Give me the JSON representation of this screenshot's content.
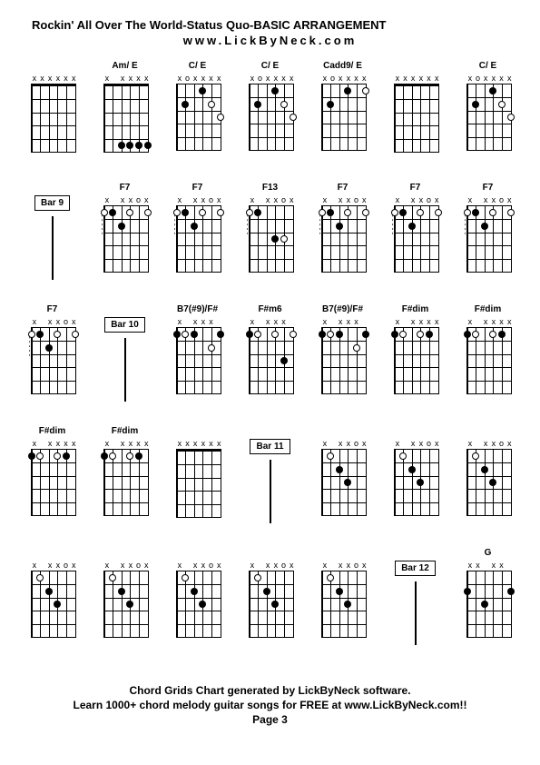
{
  "title": "Rockin' All Over The World-Status Quo-BASIC ARRANGEMENT",
  "subtitle": "www.LickByNeck.com",
  "footer": {
    "line1": "Chord Grids Chart generated by LickByNeck software.",
    "line2": "Learn 1000+ chord melody guitar songs for FREE at www.LickByNeck.com!!",
    "line3": "Page 3"
  },
  "cells": [
    {
      "type": "chord",
      "name": "",
      "markers": [
        "x",
        "x",
        "x",
        "x",
        "x",
        "x"
      ],
      "nut": true,
      "dots": []
    },
    {
      "type": "chord",
      "name": "Am/ E",
      "markers": [
        "x",
        "",
        "x",
        "x",
        "x",
        "x"
      ],
      "nut": true,
      "dots": [
        {
          "s": 2,
          "f": 5,
          "open": false
        },
        {
          "s": 3,
          "f": 5,
          "open": false
        },
        {
          "s": 4,
          "f": 5,
          "open": false
        },
        {
          "s": 5,
          "f": 5,
          "open": false
        }
      ]
    },
    {
      "type": "chord",
      "name": "C/ E",
      "markers": [
        "x",
        "o",
        "x",
        "x",
        "x",
        "x"
      ],
      "nut": false,
      "dots": [
        {
          "s": 1,
          "f": 2,
          "open": false
        },
        {
          "s": 3,
          "f": 1,
          "open": false
        },
        {
          "s": 4,
          "f": 2,
          "open": true
        },
        {
          "s": 5,
          "f": 3,
          "open": true
        }
      ]
    },
    {
      "type": "chord",
      "name": "C/ E",
      "markers": [
        "x",
        "o",
        "x",
        "x",
        "x",
        "x"
      ],
      "nut": false,
      "dots": [
        {
          "s": 1,
          "f": 2,
          "open": false
        },
        {
          "s": 3,
          "f": 1,
          "open": false
        },
        {
          "s": 4,
          "f": 2,
          "open": true
        },
        {
          "s": 5,
          "f": 3,
          "open": true
        }
      ]
    },
    {
      "type": "chord",
      "name": "Cadd9/ E",
      "markers": [
        "x",
        "o",
        "x",
        "x",
        "x",
        "x"
      ],
      "nut": false,
      "dots": [
        {
          "s": 1,
          "f": 2,
          "open": false
        },
        {
          "s": 3,
          "f": 1,
          "open": false
        },
        {
          "s": 5,
          "f": 1,
          "open": true
        }
      ]
    },
    {
      "type": "chord",
      "name": "",
      "markers": [
        "x",
        "x",
        "x",
        "x",
        "x",
        "x"
      ],
      "nut": true,
      "dots": []
    },
    {
      "type": "chord",
      "name": "C/ E",
      "markers": [
        "x",
        "o",
        "x",
        "x",
        "x",
        "x"
      ],
      "nut": false,
      "dots": [
        {
          "s": 1,
          "f": 2,
          "open": false
        },
        {
          "s": 3,
          "f": 1,
          "open": false
        },
        {
          "s": 4,
          "f": 2,
          "open": true
        },
        {
          "s": 5,
          "f": 3,
          "open": true
        }
      ]
    },
    {
      "type": "bar",
      "label": "Bar 9"
    },
    {
      "type": "chord",
      "name": "F7",
      "markers": [
        "x",
        "",
        "x",
        "x",
        "o",
        "x"
      ],
      "nut": false,
      "dots": [
        {
          "s": 0,
          "f": 1,
          "open": true
        },
        {
          "s": 1,
          "f": 1,
          "open": false
        },
        {
          "s": 2,
          "f": 2,
          "open": false
        },
        {
          "s": 3,
          "f": 1,
          "open": true
        },
        {
          "s": 5,
          "f": 1,
          "open": true
        }
      ],
      "dashes": true
    },
    {
      "type": "chord",
      "name": "F7",
      "markers": [
        "x",
        "",
        "x",
        "x",
        "o",
        "x"
      ],
      "nut": false,
      "dots": [
        {
          "s": 0,
          "f": 1,
          "open": true
        },
        {
          "s": 1,
          "f": 1,
          "open": false
        },
        {
          "s": 2,
          "f": 2,
          "open": false
        },
        {
          "s": 3,
          "f": 1,
          "open": true
        },
        {
          "s": 5,
          "f": 1,
          "open": true
        }
      ],
      "dashes": true
    },
    {
      "type": "chord",
      "name": "F13",
      "markers": [
        "x",
        "",
        "x",
        "x",
        "o",
        "x"
      ],
      "nut": false,
      "dots": [
        {
          "s": 0,
          "f": 1,
          "open": true
        },
        {
          "s": 1,
          "f": 1,
          "open": false
        },
        {
          "s": 3,
          "f": 3,
          "open": false
        },
        {
          "s": 4,
          "f": 3,
          "open": true
        }
      ],
      "dashes": true
    },
    {
      "type": "chord",
      "name": "F7",
      "markers": [
        "x",
        "",
        "x",
        "x",
        "o",
        "x"
      ],
      "nut": false,
      "dots": [
        {
          "s": 0,
          "f": 1,
          "open": true
        },
        {
          "s": 1,
          "f": 1,
          "open": false
        },
        {
          "s": 2,
          "f": 2,
          "open": false
        },
        {
          "s": 3,
          "f": 1,
          "open": true
        },
        {
          "s": 5,
          "f": 1,
          "open": true
        }
      ],
      "dashes": true
    },
    {
      "type": "chord",
      "name": "F7",
      "markers": [
        "x",
        "",
        "x",
        "x",
        "o",
        "x"
      ],
      "nut": false,
      "dots": [
        {
          "s": 0,
          "f": 1,
          "open": true
        },
        {
          "s": 1,
          "f": 1,
          "open": false
        },
        {
          "s": 2,
          "f": 2,
          "open": false
        },
        {
          "s": 3,
          "f": 1,
          "open": true
        },
        {
          "s": 5,
          "f": 1,
          "open": true
        }
      ],
      "dashes": true
    },
    {
      "type": "chord",
      "name": "F7",
      "markers": [
        "x",
        "",
        "x",
        "x",
        "o",
        "x"
      ],
      "nut": false,
      "dots": [
        {
          "s": 0,
          "f": 1,
          "open": true
        },
        {
          "s": 1,
          "f": 1,
          "open": false
        },
        {
          "s": 2,
          "f": 2,
          "open": false
        },
        {
          "s": 3,
          "f": 1,
          "open": true
        },
        {
          "s": 5,
          "f": 1,
          "open": true
        }
      ],
      "dashes": true
    },
    {
      "type": "chord",
      "name": "F7",
      "markers": [
        "x",
        "",
        "x",
        "x",
        "o",
        "x"
      ],
      "nut": false,
      "dots": [
        {
          "s": 0,
          "f": 1,
          "open": true
        },
        {
          "s": 1,
          "f": 1,
          "open": false
        },
        {
          "s": 2,
          "f": 2,
          "open": false
        },
        {
          "s": 3,
          "f": 1,
          "open": true
        },
        {
          "s": 5,
          "f": 1,
          "open": true
        }
      ],
      "dashes": true
    },
    {
      "type": "bar",
      "label": "Bar 10"
    },
    {
      "type": "chord",
      "name": "B7(#9)/F#",
      "markers": [
        "x",
        "",
        "x",
        "x",
        "x",
        ""
      ],
      "nut": false,
      "dots": [
        {
          "s": 0,
          "f": 1,
          "open": false
        },
        {
          "s": 1,
          "f": 1,
          "open": true
        },
        {
          "s": 2,
          "f": 1,
          "open": false
        },
        {
          "s": 4,
          "f": 2,
          "open": true
        },
        {
          "s": 5,
          "f": 1,
          "open": false
        }
      ]
    },
    {
      "type": "chord",
      "name": "F#m6",
      "markers": [
        "x",
        "",
        "x",
        "x",
        "x",
        ""
      ],
      "nut": false,
      "dots": [
        {
          "s": 0,
          "f": 1,
          "open": false
        },
        {
          "s": 1,
          "f": 1,
          "open": true
        },
        {
          "s": 3,
          "f": 1,
          "open": true
        },
        {
          "s": 4,
          "f": 3,
          "open": false
        },
        {
          "s": 5,
          "f": 1,
          "open": true
        }
      ]
    },
    {
      "type": "chord",
      "name": "B7(#9)/F#",
      "markers": [
        "x",
        "",
        "x",
        "x",
        "x",
        ""
      ],
      "nut": false,
      "dots": [
        {
          "s": 0,
          "f": 1,
          "open": false
        },
        {
          "s": 1,
          "f": 1,
          "open": true
        },
        {
          "s": 2,
          "f": 1,
          "open": false
        },
        {
          "s": 4,
          "f": 2,
          "open": true
        },
        {
          "s": 5,
          "f": 1,
          "open": false
        }
      ]
    },
    {
      "type": "chord",
      "name": "F#dim",
      "markers": [
        "x",
        "",
        "x",
        "x",
        "x",
        "x"
      ],
      "nut": false,
      "dots": [
        {
          "s": 0,
          "f": 1,
          "open": false
        },
        {
          "s": 1,
          "f": 1,
          "open": true
        },
        {
          "s": 3,
          "f": 1,
          "open": true
        },
        {
          "s": 4,
          "f": 1,
          "open": false
        }
      ]
    },
    {
      "type": "chord",
      "name": "F#dim",
      "markers": [
        "x",
        "",
        "x",
        "x",
        "x",
        "x"
      ],
      "nut": false,
      "dots": [
        {
          "s": 0,
          "f": 1,
          "open": false
        },
        {
          "s": 1,
          "f": 1,
          "open": true
        },
        {
          "s": 3,
          "f": 1,
          "open": true
        },
        {
          "s": 4,
          "f": 1,
          "open": false
        }
      ]
    },
    {
      "type": "chord",
      "name": "F#dim",
      "markers": [
        "x",
        "",
        "x",
        "x",
        "x",
        "x"
      ],
      "nut": false,
      "dots": [
        {
          "s": 0,
          "f": 1,
          "open": false
        },
        {
          "s": 1,
          "f": 1,
          "open": true
        },
        {
          "s": 3,
          "f": 1,
          "open": true
        },
        {
          "s": 4,
          "f": 1,
          "open": false
        }
      ]
    },
    {
      "type": "chord",
      "name": "F#dim",
      "markers": [
        "x",
        "",
        "x",
        "x",
        "x",
        "x"
      ],
      "nut": false,
      "dots": [
        {
          "s": 0,
          "f": 1,
          "open": false
        },
        {
          "s": 1,
          "f": 1,
          "open": true
        },
        {
          "s": 3,
          "f": 1,
          "open": true
        },
        {
          "s": 4,
          "f": 1,
          "open": false
        }
      ]
    },
    {
      "type": "chord",
      "name": "",
      "markers": [
        "x",
        "x",
        "x",
        "x",
        "x",
        "x"
      ],
      "nut": true,
      "dots": []
    },
    {
      "type": "bar",
      "label": "Bar 11"
    },
    {
      "type": "chord",
      "name": "",
      "markers": [
        "x",
        "",
        "x",
        "x",
        "o",
        "x"
      ],
      "nut": false,
      "dots": [
        {
          "s": 1,
          "f": 1,
          "open": true
        },
        {
          "s": 2,
          "f": 2,
          "open": false
        },
        {
          "s": 3,
          "f": 3,
          "open": false
        }
      ]
    },
    {
      "type": "chord",
      "name": "",
      "markers": [
        "x",
        "",
        "x",
        "x",
        "o",
        "x"
      ],
      "nut": false,
      "dots": [
        {
          "s": 1,
          "f": 1,
          "open": true
        },
        {
          "s": 2,
          "f": 2,
          "open": false
        },
        {
          "s": 3,
          "f": 3,
          "open": false
        }
      ]
    },
    {
      "type": "chord",
      "name": "",
      "markers": [
        "x",
        "",
        "x",
        "x",
        "o",
        "x"
      ],
      "nut": false,
      "dots": [
        {
          "s": 1,
          "f": 1,
          "open": true
        },
        {
          "s": 2,
          "f": 2,
          "open": false
        },
        {
          "s": 3,
          "f": 3,
          "open": false
        }
      ]
    },
    {
      "type": "chord",
      "name": "",
      "markers": [
        "x",
        "",
        "x",
        "x",
        "o",
        "x"
      ],
      "nut": false,
      "dots": [
        {
          "s": 1,
          "f": 1,
          "open": true
        },
        {
          "s": 2,
          "f": 2,
          "open": false
        },
        {
          "s": 3,
          "f": 3,
          "open": false
        }
      ]
    },
    {
      "type": "chord",
      "name": "",
      "markers": [
        "x",
        "",
        "x",
        "x",
        "o",
        "x"
      ],
      "nut": false,
      "dots": [
        {
          "s": 1,
          "f": 1,
          "open": true
        },
        {
          "s": 2,
          "f": 2,
          "open": false
        },
        {
          "s": 3,
          "f": 3,
          "open": false
        }
      ]
    },
    {
      "type": "chord",
      "name": "",
      "markers": [
        "x",
        "",
        "x",
        "x",
        "o",
        "x"
      ],
      "nut": false,
      "dots": [
        {
          "s": 1,
          "f": 1,
          "open": true
        },
        {
          "s": 2,
          "f": 2,
          "open": false
        },
        {
          "s": 3,
          "f": 3,
          "open": false
        }
      ]
    },
    {
      "type": "chord",
      "name": "",
      "markers": [
        "x",
        "",
        "x",
        "x",
        "o",
        "x"
      ],
      "nut": false,
      "dots": [
        {
          "s": 1,
          "f": 1,
          "open": true
        },
        {
          "s": 2,
          "f": 2,
          "open": false
        },
        {
          "s": 3,
          "f": 3,
          "open": false
        }
      ]
    },
    {
      "type": "chord",
      "name": "",
      "markers": [
        "x",
        "",
        "x",
        "x",
        "o",
        "x"
      ],
      "nut": false,
      "dots": [
        {
          "s": 1,
          "f": 1,
          "open": true
        },
        {
          "s": 2,
          "f": 2,
          "open": false
        },
        {
          "s": 3,
          "f": 3,
          "open": false
        }
      ]
    },
    {
      "type": "bar",
      "label": "Bar 12"
    },
    {
      "type": "chord",
      "name": "G",
      "markers": [
        "x",
        "x",
        "",
        "x",
        "x",
        ""
      ],
      "nut": false,
      "dots": [
        {
          "s": 0,
          "f": 2,
          "open": false
        },
        {
          "s": 2,
          "f": 3,
          "open": false
        },
        {
          "s": 5,
          "f": 2,
          "open": false
        }
      ]
    }
  ],
  "diagram": {
    "strings": 6,
    "frets": 5,
    "string_spacing": 9.6,
    "fret_spacing": 14.4,
    "colors": {
      "line": "#000000",
      "dot_fill": "#000000",
      "dot_open_border": "#000000",
      "bg": "#ffffff"
    }
  }
}
